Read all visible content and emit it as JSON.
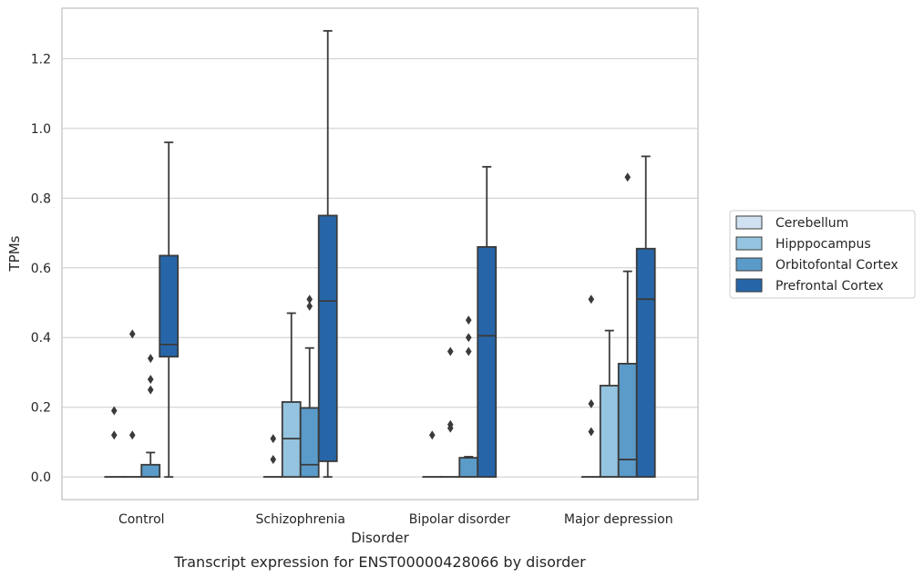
{
  "chart_data": {
    "type": "boxplot",
    "caption": "Transcript expression for ENST00000428066 by disorder",
    "xlabel": "Disorder",
    "ylabel": "TPMs",
    "ylim": [
      -0.065,
      1.345
    ],
    "yticks": [
      "0.0",
      "0.2",
      "0.4",
      "0.6",
      "0.8",
      "1.0",
      "1.2"
    ],
    "grid": "horizontal",
    "legend_position": "right",
    "categories": [
      "Control",
      "Schizophrenia",
      "Bipolar disorder",
      "Major depression"
    ],
    "series": [
      {
        "name": "Cerebellum",
        "color": "#d0e1f2",
        "boxes": [
          {
            "q1": 0,
            "median": 0,
            "q3": 0,
            "whisker_low": 0,
            "whisker_high": 0,
            "outliers": [
              0.19,
              0.12
            ]
          },
          {
            "q1": 0,
            "median": 0,
            "q3": 0,
            "whisker_low": 0,
            "whisker_high": 0,
            "outliers": [
              0.11,
              0.05
            ]
          },
          {
            "q1": 0,
            "median": 0,
            "q3": 0,
            "whisker_low": 0,
            "whisker_high": 0,
            "outliers": [
              0.12
            ]
          },
          {
            "q1": 0,
            "median": 0,
            "q3": 0,
            "whisker_low": 0,
            "whisker_high": 0,
            "outliers": [
              0.51,
              0.21,
              0.13
            ]
          }
        ]
      },
      {
        "name": "Hipppocampus",
        "color": "#94c4df",
        "boxes": [
          {
            "q1": 0,
            "median": 0,
            "q3": 0,
            "whisker_low": 0,
            "whisker_high": 0,
            "outliers": [
              0.41,
              0.12
            ]
          },
          {
            "q1": 0,
            "median": 0.11,
            "q3": 0.215,
            "whisker_low": 0,
            "whisker_high": 0.47,
            "outliers": []
          },
          {
            "q1": 0,
            "median": 0,
            "q3": 0,
            "whisker_low": 0,
            "whisker_high": 0,
            "outliers": [
              0.36,
              0.15,
              0.14
            ]
          },
          {
            "q1": 0,
            "median": 0,
            "q3": 0.262,
            "whisker_low": 0,
            "whisker_high": 0.42,
            "outliers": []
          }
        ]
      },
      {
        "name": "Orbitofontal Cortex",
        "color": "#5a9bc9",
        "boxes": [
          {
            "q1": 0,
            "median": 0,
            "q3": 0.035,
            "whisker_low": 0,
            "whisker_high": 0.07,
            "outliers": [
              0.34,
              0.28,
              0.25
            ]
          },
          {
            "q1": 0,
            "median": 0.035,
            "q3": 0.198,
            "whisker_low": 0,
            "whisker_high": 0.37,
            "outliers": [
              0.51,
              0.49
            ]
          },
          {
            "q1": 0,
            "median": 0,
            "q3": 0.055,
            "whisker_low": 0,
            "whisker_high": 0.058,
            "outliers": [
              0.45,
              0.4,
              0.36
            ]
          },
          {
            "q1": 0,
            "median": 0.05,
            "q3": 0.325,
            "whisker_low": 0,
            "whisker_high": 0.59,
            "outliers": [
              0.86
            ]
          }
        ]
      },
      {
        "name": "Prefrontal Cortex",
        "color": "#2666a8",
        "boxes": [
          {
            "q1": 0.345,
            "median": 0.38,
            "q3": 0.635,
            "whisker_low": 0,
            "whisker_high": 0.96,
            "outliers": []
          },
          {
            "q1": 0.045,
            "median": 0.505,
            "q3": 0.75,
            "whisker_low": 0,
            "whisker_high": 1.28,
            "outliers": []
          },
          {
            "q1": 0,
            "median": 0.405,
            "q3": 0.66,
            "whisker_low": 0,
            "whisker_high": 0.89,
            "outliers": []
          },
          {
            "q1": 0,
            "median": 0.51,
            "q3": 0.655,
            "whisker_low": 0,
            "whisker_high": 0.92,
            "outliers": []
          }
        ]
      }
    ]
  }
}
